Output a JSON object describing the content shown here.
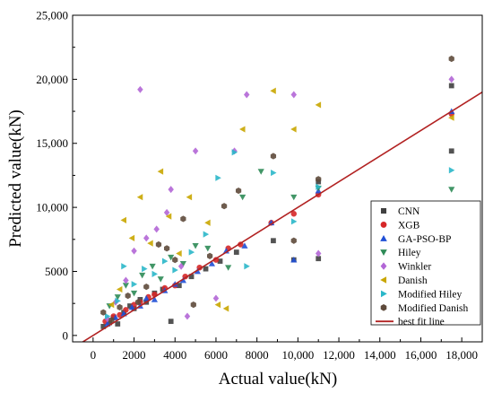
{
  "chart_data": {
    "type": "scatter",
    "xlabel": "Actual value(kN)",
    "ylabel": "Predicted value(kN)",
    "xlim": [
      -1000,
      19000
    ],
    "ylim": [
      -500,
      25000
    ],
    "x_ticks": [
      0,
      2000,
      4000,
      6000,
      8000,
      10000,
      12000,
      14000,
      16000,
      18000
    ],
    "x_tick_labels": [
      "0",
      "2000",
      "4000",
      "6000",
      "8000",
      "10,000",
      "12,000",
      "14,000",
      "16,000",
      "18,000"
    ],
    "y_ticks": [
      0,
      5000,
      10000,
      15000,
      20000,
      25000
    ],
    "y_tick_labels": [
      "0",
      "5000",
      "10,000",
      "15,000",
      "20,000",
      "25,000"
    ],
    "grid": false,
    "legend_position": "bottom-right",
    "best_fit_line": {
      "name": "best fit line",
      "color": "#b22222",
      "points": [
        [
          -1000,
          -1000
        ],
        [
          19000,
          19000
        ]
      ]
    },
    "series": [
      {
        "name": "CNN",
        "marker": "square",
        "color": "#404040",
        "points": [
          [
            500,
            700
          ],
          [
            800,
            1000
          ],
          [
            1000,
            1400
          ],
          [
            1200,
            900
          ],
          [
            1500,
            1800
          ],
          [
            1800,
            2300
          ],
          [
            2000,
            2100
          ],
          [
            2300,
            2800
          ],
          [
            2600,
            2600
          ],
          [
            3000,
            3300
          ],
          [
            3400,
            3600
          ],
          [
            3800,
            1100
          ],
          [
            4200,
            3900
          ],
          [
            4800,
            4600
          ],
          [
            5500,
            5200
          ],
          [
            6200,
            5800
          ],
          [
            7000,
            6500
          ],
          [
            8800,
            7400
          ],
          [
            9800,
            5900
          ],
          [
            11000,
            6000
          ],
          [
            11000,
            12000
          ],
          [
            17500,
            19500
          ],
          [
            17500,
            14400
          ]
        ]
      },
      {
        "name": "XGB",
        "marker": "circle",
        "color": "#d62728",
        "points": [
          [
            600,
            1100
          ],
          [
            1000,
            1500
          ],
          [
            1300,
            1600
          ],
          [
            1600,
            2000
          ],
          [
            2000,
            2400
          ],
          [
            2300,
            2600
          ],
          [
            2700,
            3000
          ],
          [
            3000,
            3200
          ],
          [
            3500,
            3700
          ],
          [
            4000,
            3900
          ],
          [
            4500,
            4600
          ],
          [
            5200,
            5300
          ],
          [
            6000,
            5900
          ],
          [
            6600,
            6800
          ],
          [
            7200,
            7100
          ],
          [
            8700,
            8800
          ],
          [
            9800,
            9500
          ],
          [
            11000,
            11000
          ],
          [
            17500,
            17300
          ]
        ]
      },
      {
        "name": "GA-PSO-BP",
        "marker": "triangle-up",
        "color": "#1f4fd6",
        "points": [
          [
            700,
            900
          ],
          [
            1100,
            1400
          ],
          [
            1500,
            1700
          ],
          [
            1900,
            2200
          ],
          [
            2300,
            2300
          ],
          [
            2600,
            2900
          ],
          [
            3000,
            2800
          ],
          [
            3500,
            3500
          ],
          [
            4000,
            4000
          ],
          [
            4400,
            4300
          ],
          [
            5100,
            5000
          ],
          [
            5800,
            5600
          ],
          [
            6500,
            6600
          ],
          [
            7400,
            7000
          ],
          [
            8700,
            8800
          ],
          [
            9800,
            5900
          ],
          [
            11000,
            11300
          ],
          [
            17500,
            17500
          ]
        ]
      },
      {
        "name": "Hiley",
        "marker": "triangle-down",
        "color": "#2e8b57",
        "points": [
          [
            800,
            2300
          ],
          [
            1200,
            3000
          ],
          [
            1600,
            3900
          ],
          [
            2000,
            3300
          ],
          [
            2400,
            4700
          ],
          [
            2900,
            5400
          ],
          [
            3300,
            4400
          ],
          [
            3800,
            6100
          ],
          [
            4400,
            5600
          ],
          [
            5000,
            7000
          ],
          [
            5600,
            6800
          ],
          [
            6600,
            5300
          ],
          [
            7300,
            10800
          ],
          [
            8200,
            12800
          ],
          [
            9800,
            10800
          ],
          [
            11000,
            11500
          ],
          [
            17500,
            11400
          ]
        ]
      },
      {
        "name": "Winkler",
        "marker": "diamond",
        "color": "#b266d6",
        "points": [
          [
            700,
            1300
          ],
          [
            1100,
            2600
          ],
          [
            1600,
            4300
          ],
          [
            2000,
            6600
          ],
          [
            2300,
            19200
          ],
          [
            2600,
            7600
          ],
          [
            3100,
            8300
          ],
          [
            3600,
            9600
          ],
          [
            3800,
            11400
          ],
          [
            4300,
            5400
          ],
          [
            4600,
            1500
          ],
          [
            5000,
            14400
          ],
          [
            6000,
            2900
          ],
          [
            6900,
            14400
          ],
          [
            7500,
            18800
          ],
          [
            9800,
            18800
          ],
          [
            11000,
            6400
          ],
          [
            17500,
            20000
          ]
        ]
      },
      {
        "name": "Danish",
        "marker": "triangle-left",
        "color": "#c9a600",
        "points": [
          [
            900,
            2400
          ],
          [
            1300,
            3600
          ],
          [
            1500,
            9000
          ],
          [
            1900,
            7600
          ],
          [
            2300,
            10800
          ],
          [
            2800,
            7200
          ],
          [
            3300,
            12800
          ],
          [
            3700,
            9300
          ],
          [
            4200,
            6400
          ],
          [
            4700,
            10800
          ],
          [
            5600,
            8800
          ],
          [
            6100,
            2400
          ],
          [
            6500,
            2100
          ],
          [
            7300,
            16100
          ],
          [
            8800,
            19100
          ],
          [
            9800,
            16100
          ],
          [
            11000,
            18000
          ],
          [
            17500,
            17000
          ]
        ]
      },
      {
        "name": "Modified Hiley",
        "marker": "triangle-right",
        "color": "#2ab7c9",
        "points": [
          [
            700,
            1500
          ],
          [
            1200,
            2700
          ],
          [
            1500,
            5400
          ],
          [
            2000,
            4000
          ],
          [
            2500,
            5200
          ],
          [
            3000,
            4800
          ],
          [
            3500,
            5800
          ],
          [
            4000,
            5100
          ],
          [
            4800,
            6500
          ],
          [
            5500,
            7900
          ],
          [
            6100,
            12300
          ],
          [
            6900,
            14300
          ],
          [
            7500,
            5400
          ],
          [
            8800,
            12700
          ],
          [
            9800,
            8900
          ],
          [
            11000,
            11600
          ],
          [
            17500,
            12900
          ]
        ]
      },
      {
        "name": "Modified Danish",
        "marker": "hexagon",
        "color": "#5e4a3b",
        "points": [
          [
            500,
            1800
          ],
          [
            900,
            1200
          ],
          [
            1300,
            2200
          ],
          [
            1700,
            3100
          ],
          [
            2200,
            2600
          ],
          [
            2600,
            3800
          ],
          [
            3200,
            7100
          ],
          [
            3600,
            6800
          ],
          [
            4000,
            5900
          ],
          [
            4400,
            9100
          ],
          [
            4900,
            2400
          ],
          [
            5700,
            6200
          ],
          [
            6400,
            10100
          ],
          [
            7100,
            11300
          ],
          [
            8800,
            14000
          ],
          [
            9800,
            7400
          ],
          [
            11000,
            12200
          ],
          [
            17500,
            21600
          ]
        ]
      }
    ]
  }
}
